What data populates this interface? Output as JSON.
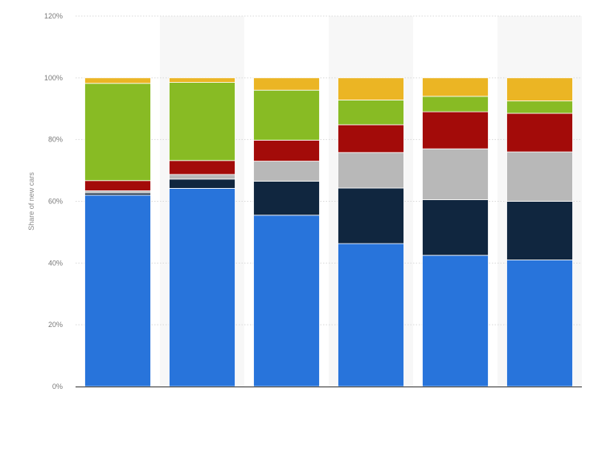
{
  "chart_data": {
    "type": "bar",
    "stacked": true,
    "ylabel": "Share of new cars",
    "ylim": [
      0,
      120
    ],
    "yticks": [
      0,
      20,
      40,
      60,
      80,
      100,
      120
    ],
    "ytick_suffix": "%",
    "grid": true,
    "legend": "none",
    "categories": [
      "",
      "",
      "",
      "",
      "",
      ""
    ],
    "series": [
      {
        "color": "#2874db",
        "values": [
          62.0,
          64.2,
          55.5,
          46.3,
          42.5,
          41.0
        ]
      },
      {
        "color": "#10263f",
        "values": [
          0.7,
          3.0,
          11.0,
          18.0,
          18.0,
          19.0
        ]
      },
      {
        "color": "#b8b8b8",
        "values": [
          0.7,
          1.5,
          6.5,
          11.5,
          16.5,
          16.0
        ]
      },
      {
        "color": "#a30b09",
        "values": [
          3.3,
          4.5,
          6.8,
          9.0,
          12.0,
          12.5
        ]
      },
      {
        "color": "#88bb24",
        "values": [
          31.5,
          25.3,
          16.2,
          8.0,
          5.0,
          4.0
        ]
      },
      {
        "color": "#ebb524",
        "values": [
          1.8,
          1.5,
          4.0,
          7.2,
          6.0,
          7.5
        ]
      }
    ]
  }
}
